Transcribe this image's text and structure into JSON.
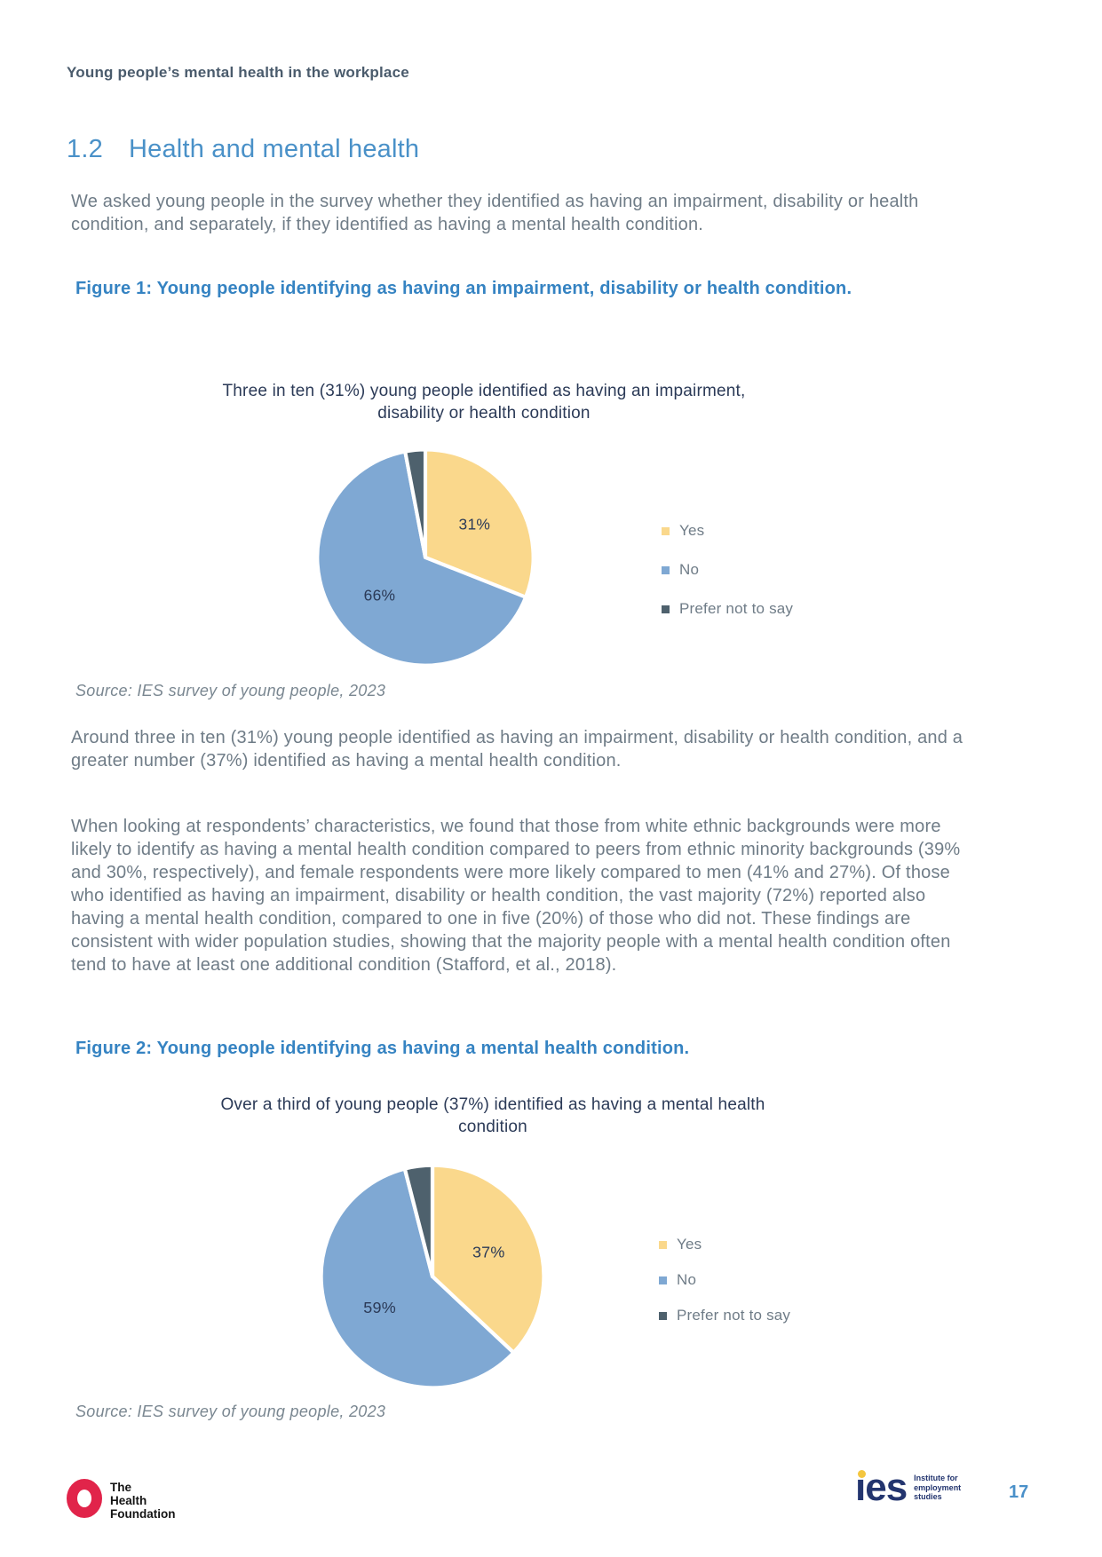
{
  "page": {
    "header": "Young people’s mental health in the workplace",
    "page_number": "17"
  },
  "section": {
    "number": "1.2",
    "title": "Health and mental health"
  },
  "paragraphs": {
    "intro": "We asked young people in the survey whether they identified as having an impairment, disability or health condition, and separately, if they identified as having a mental health condition.",
    "after_fig1": "Around three in ten (31%) young people identified as having an impairment, disability or health condition, and a greater number (37%) identified as having a mental health condition.",
    "characteristics": "When looking at respondents’ characteristics, we found that those from white ethnic backgrounds were more likely to identify as having a mental health condition compared to peers from ethnic minority backgrounds (39% and 30%, respectively), and female respondents were more likely compared to men (41% and 27%). Of those who identified as having an impairment, disability or health condition, the vast majority (72%) reported also having a mental health condition, compared to one in five (20%) of those who did not. These findings are consistent with wider population studies, showing that the majority people with a mental health condition often tend to have at least one additional condition (Stafford, et al., 2018)."
  },
  "figure1": {
    "caption": "Figure 1: Young people identifying as having an impairment, disability or health condition.",
    "source": "Source: IES survey of young people, 2023"
  },
  "figure2": {
    "caption": "Figure 2: Young people identifying as having a mental health condition.",
    "source": "Source: IES survey of young people, 2023"
  },
  "chart_data": [
    {
      "type": "pie",
      "title": "Three in ten (31%) young people identified as having an impairment, disability or health condition",
      "labels": [
        "Yes",
        "No",
        "Prefer not to say"
      ],
      "values": [
        31,
        66,
        3
      ],
      "value_labels": [
        "31%",
        "66%",
        ""
      ],
      "colors": [
        "#FAD88C",
        "#7FA8D3",
        "#4E616D"
      ],
      "label_color": "#2B3A57",
      "legend_position": "right",
      "rotation": "clockwise-from-top",
      "slice_border_color": "#ffffff"
    },
    {
      "type": "pie",
      "title": "Over a third of young people (37%) identified as having a mental health condition",
      "labels": [
        "Yes",
        "No",
        "Prefer not to say"
      ],
      "values": [
        37,
        59,
        4
      ],
      "value_labels": [
        "37%",
        "59%",
        ""
      ],
      "colors": [
        "#FAD88C",
        "#7FA8D3",
        "#4E616D"
      ],
      "label_color": "#2B3A57",
      "legend_position": "right",
      "rotation": "clockwise-from-top",
      "slice_border_color": "#ffffff"
    }
  ],
  "footer": {
    "hf_logo_lines": "The\nHealth\nFoundation",
    "ies_wordmark": "ıes",
    "ies_tagline": "Institute for\nemployment\nstudies"
  }
}
